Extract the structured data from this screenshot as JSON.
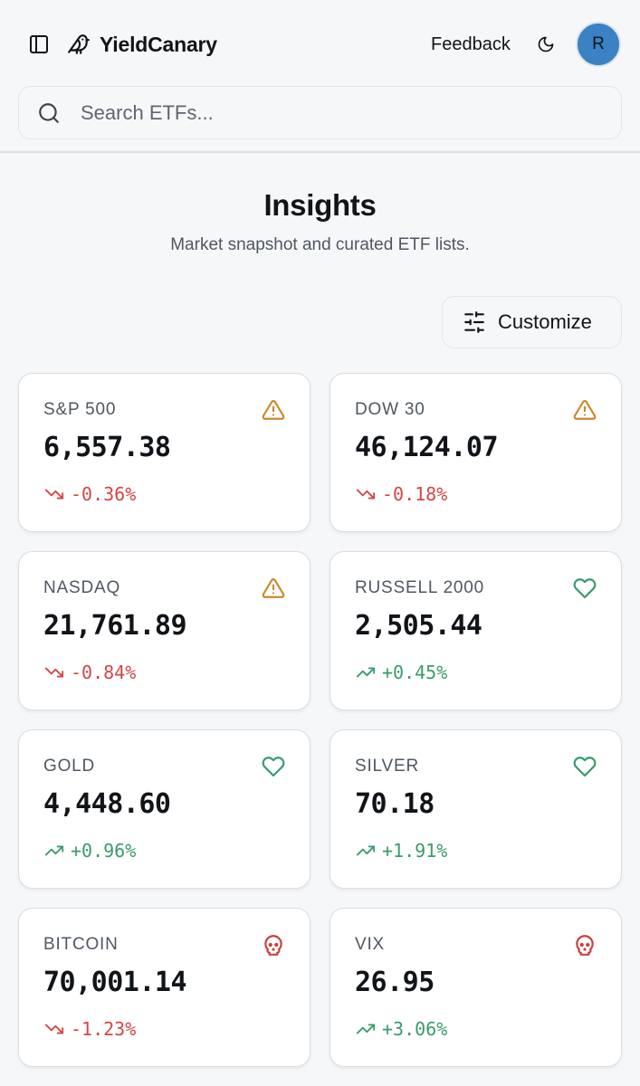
{
  "header": {
    "brand_name": "YieldCanary",
    "feedback_label": "Feedback",
    "avatar_initial": "R"
  },
  "search": {
    "placeholder": "Search ETFs..."
  },
  "page": {
    "title": "Insights",
    "subtitle": "Market snapshot and curated ETF lists."
  },
  "customize": {
    "label": "Customize"
  },
  "colors": {
    "negative": "#d64545",
    "positive": "#3a9b6c",
    "warning": "#c98a2b",
    "danger": "#c84040",
    "avatar": "#3b82c4"
  },
  "cards": [
    {
      "name": "S&P 500",
      "value": "6,557.38",
      "change": "-0.36%",
      "direction": "down",
      "status_icon": "warning-triangle-icon"
    },
    {
      "name": "DOW 30",
      "value": "46,124.07",
      "change": "-0.18%",
      "direction": "down",
      "status_icon": "warning-triangle-icon"
    },
    {
      "name": "NASDAQ",
      "value": "21,761.89",
      "change": "-0.84%",
      "direction": "down",
      "status_icon": "warning-triangle-icon"
    },
    {
      "name": "RUSSELL 2000",
      "value": "2,505.44",
      "change": "+0.45%",
      "direction": "up",
      "status_icon": "heart-icon"
    },
    {
      "name": "GOLD",
      "value": "4,448.60",
      "change": "+0.96%",
      "direction": "up",
      "status_icon": "heart-icon"
    },
    {
      "name": "SILVER",
      "value": "70.18",
      "change": "+1.91%",
      "direction": "up",
      "status_icon": "heart-icon"
    },
    {
      "name": "BITCOIN",
      "value": "70,001.14",
      "change": "-1.23%",
      "direction": "down",
      "status_icon": "skull-icon"
    },
    {
      "name": "VIX",
      "value": "26.95",
      "change": "+3.06%",
      "direction": "up",
      "status_icon": "skull-icon"
    }
  ]
}
